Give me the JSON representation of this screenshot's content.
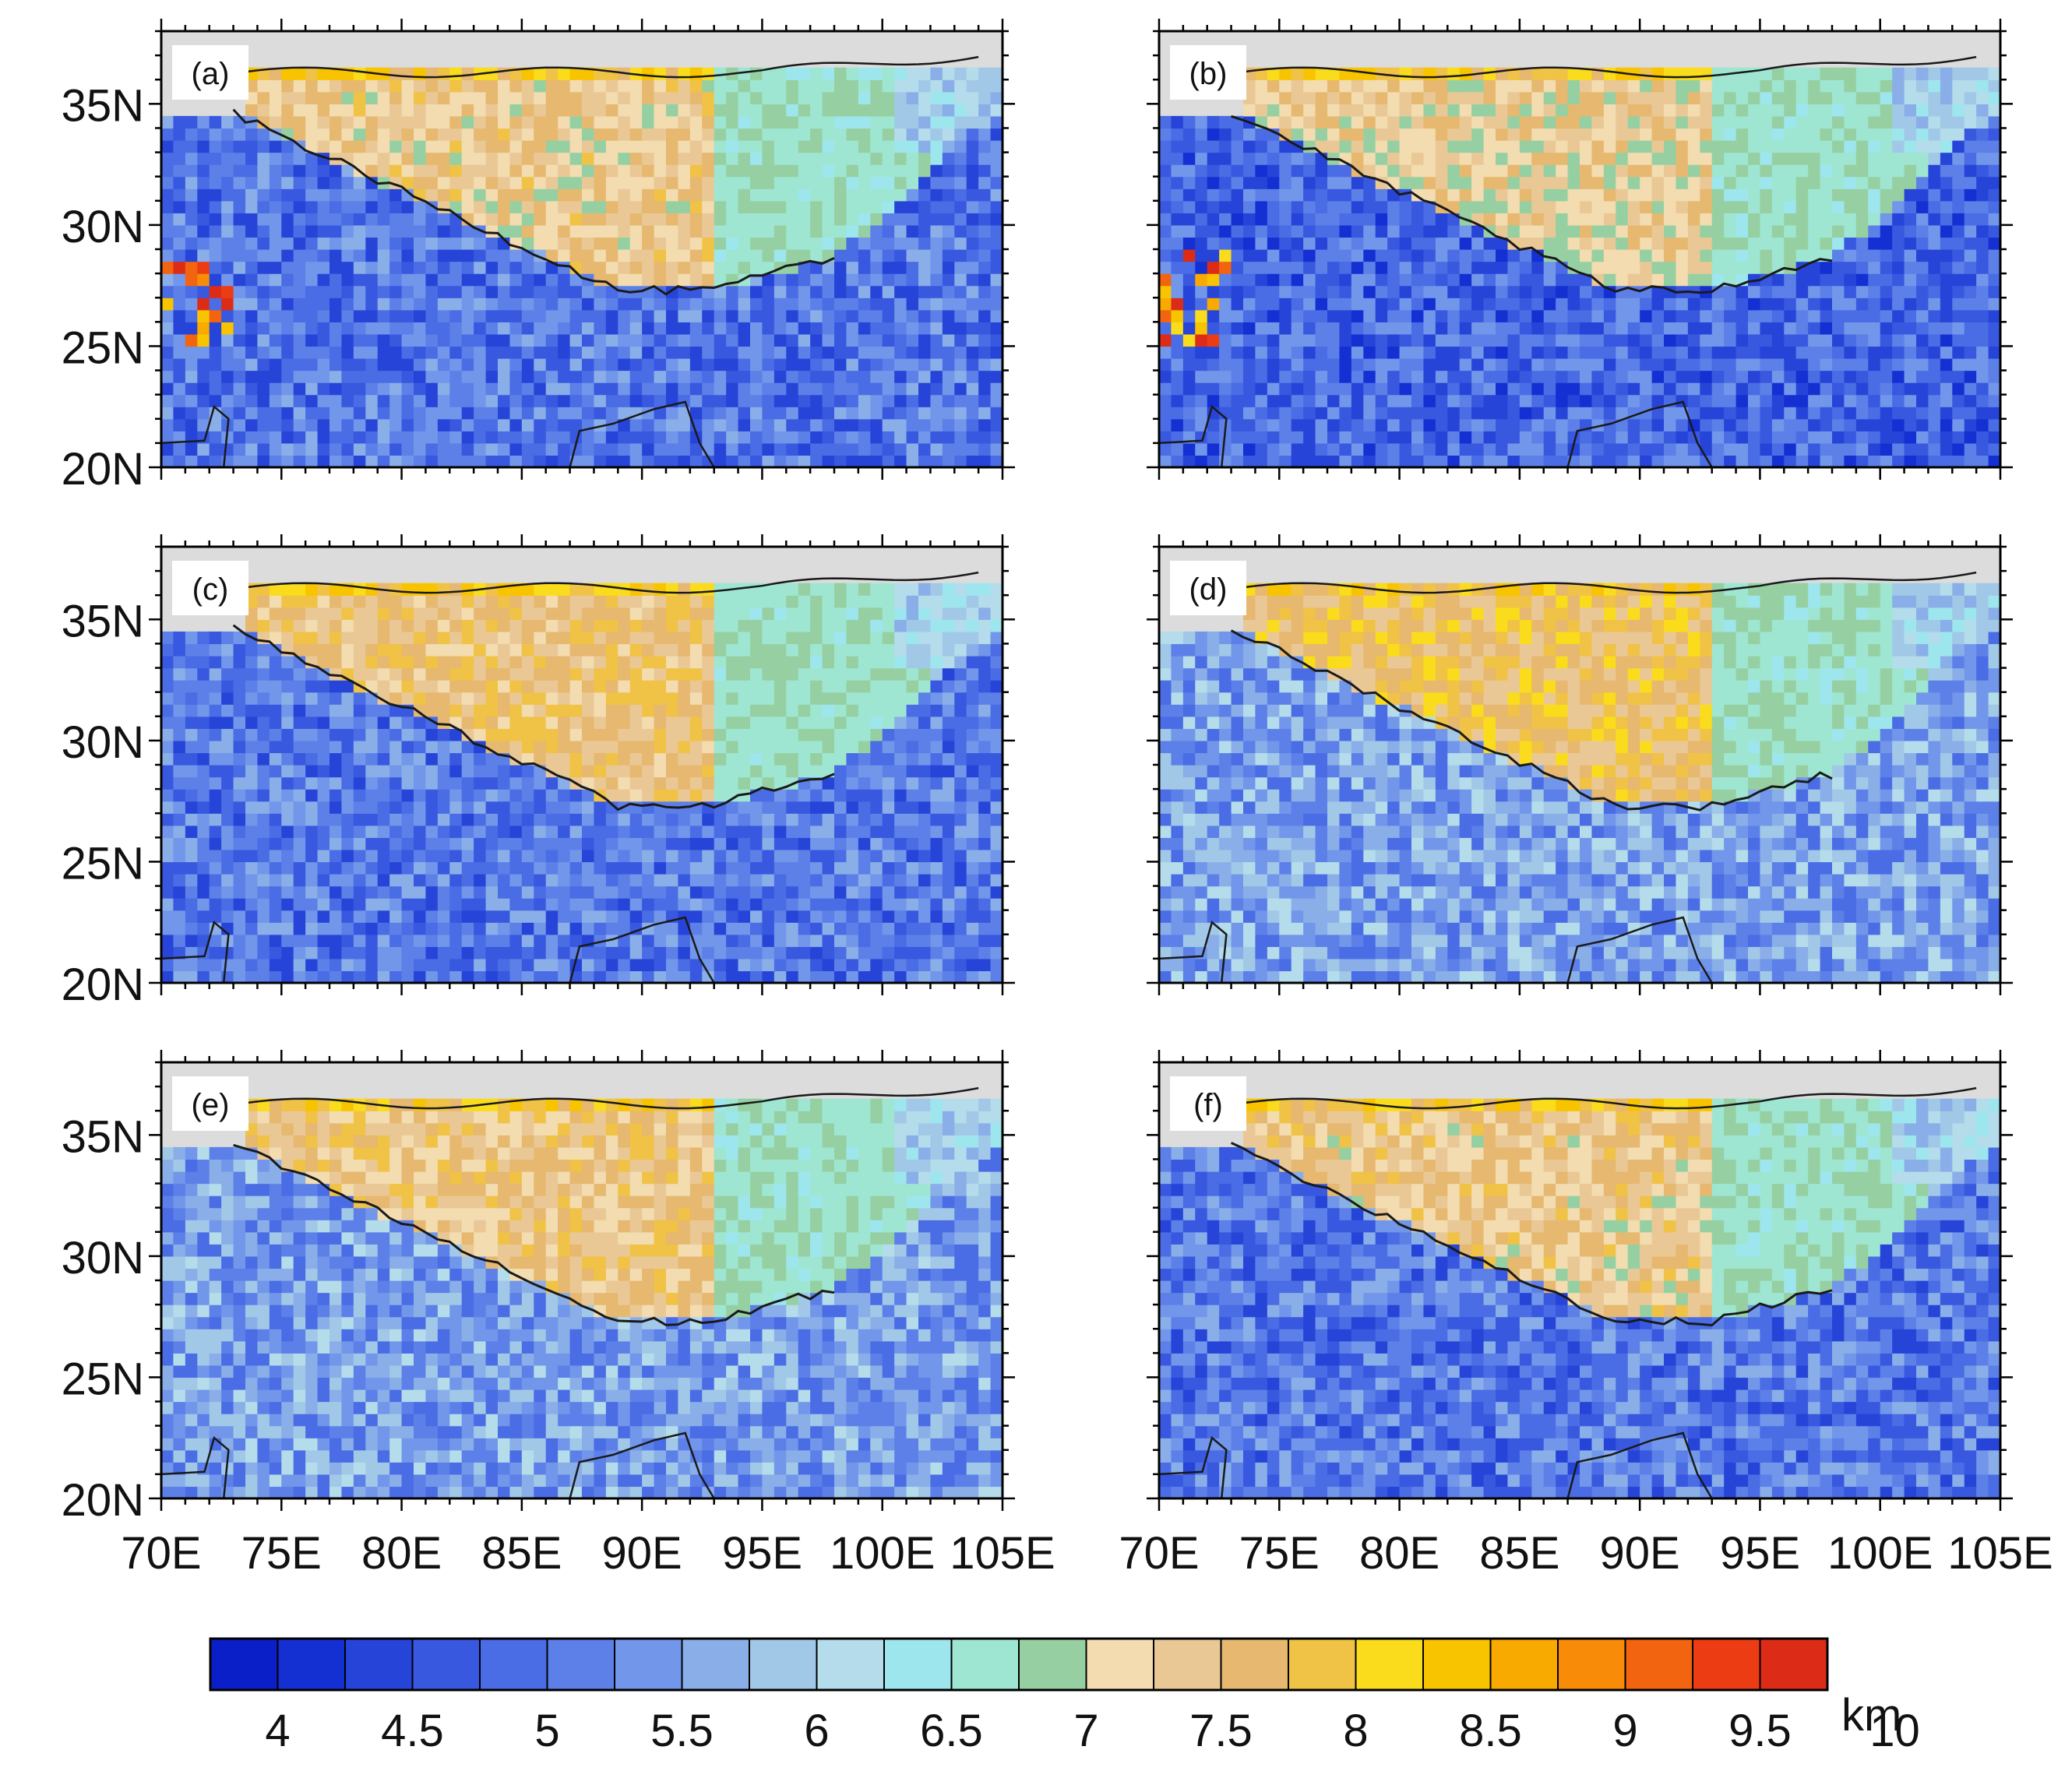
{
  "panels": [
    {
      "label": "(a)",
      "seed": 11,
      "plateau_shift": 0.0,
      "south_shift": 0.0,
      "hot_left": true
    },
    {
      "label": "(b)",
      "seed": 23,
      "plateau_shift": -0.1,
      "south_shift": -0.15,
      "hot_left": true
    },
    {
      "label": "(c)",
      "seed": 37,
      "plateau_shift": 0.15,
      "south_shift": 0.0,
      "hot_left": false
    },
    {
      "label": "(d)",
      "seed": 41,
      "plateau_shift": 0.35,
      "south_shift": 0.5,
      "hot_left": false
    },
    {
      "label": "(e)",
      "seed": 53,
      "plateau_shift": 0.1,
      "south_shift": 0.45,
      "hot_left": false
    },
    {
      "label": "(f)",
      "seed": 67,
      "plateau_shift": 0.05,
      "south_shift": 0.05,
      "hot_left": false
    }
  ],
  "lat_labels": [
    "35N",
    "30N",
    "25N",
    "20N"
  ],
  "lat_values": [
    35,
    30,
    25,
    20
  ],
  "lon_labels": [
    "70E",
    "75E",
    "80E",
    "85E",
    "90E",
    "95E",
    "100E",
    "105E"
  ],
  "lon_values": [
    70,
    75,
    80,
    85,
    90,
    95,
    100,
    105
  ],
  "lat_range": [
    20,
    38
  ],
  "lon_range": [
    70,
    105
  ],
  "colorbar": {
    "labels": [
      "4",
      "4.5",
      "5",
      "5.5",
      "6",
      "6.5",
      "7",
      "7.5",
      "8",
      "8.5",
      "9",
      "9.5",
      "10"
    ],
    "unit": "km",
    "min": 3.75,
    "step": 0.25,
    "colors": [
      "#0a1fc8",
      "#1430d2",
      "#2645d8",
      "#3858df",
      "#4a6ce4",
      "#5c80e8",
      "#7296ea",
      "#8aaee8",
      "#a2c8e8",
      "#b4dcea",
      "#9ee6ee",
      "#9ee6d2",
      "#96d0a2",
      "#f2dcb0",
      "#eac896",
      "#e6b870",
      "#f0c246",
      "#fadc1c",
      "#f8c400",
      "#f8aa00",
      "#f88c08",
      "#f26410",
      "#ec3c14",
      "#dc2c18"
    ]
  },
  "colors": {
    "background_land": "#dcdcdc",
    "coast": "#1a1a1a"
  }
}
